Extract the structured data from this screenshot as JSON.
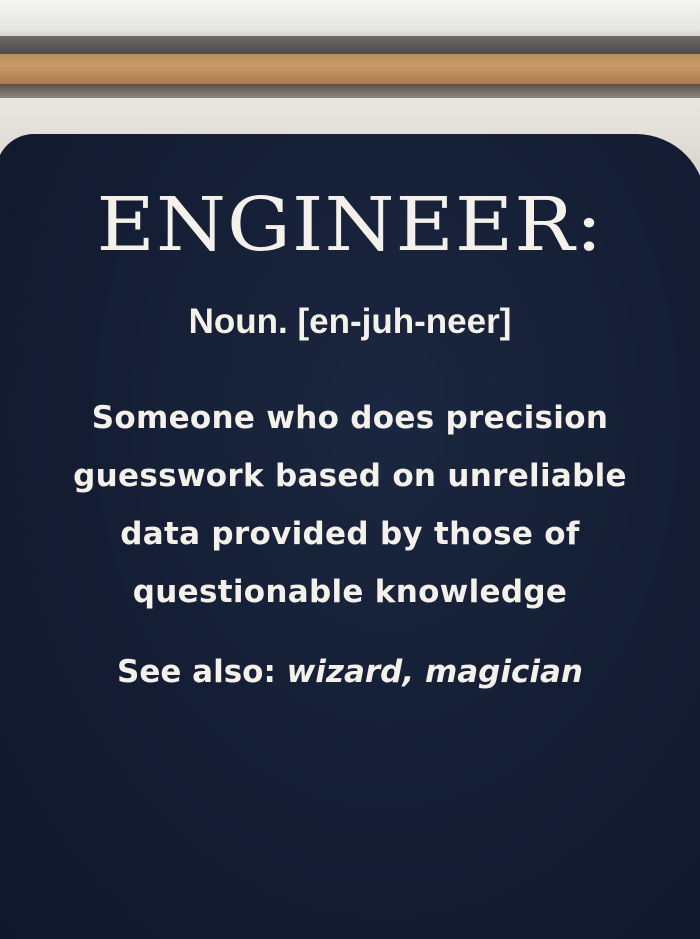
{
  "shirt_print": {
    "heading": "ENGINEER:",
    "pronunciation": "Noun. [en-juh-neer]",
    "definition_lines": [
      "Someone who does precision",
      "guesswork based on unreliable",
      "data provided by those of",
      "questionable knowledge"
    ],
    "see_also_label": "See also:",
    "see_also_terms": "wizard, magician"
  },
  "colors": {
    "shirt": "#141d33",
    "ink": "#f3f1ea",
    "wood": "#b98a5a"
  }
}
